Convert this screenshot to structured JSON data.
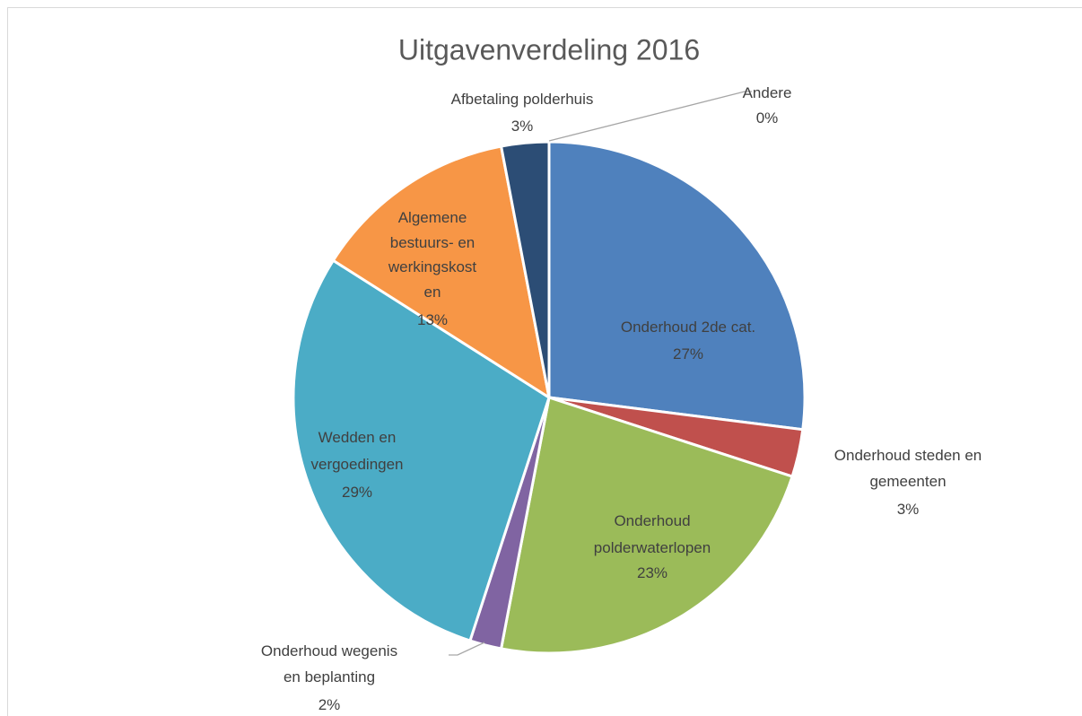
{
  "chart_data": {
    "type": "pie",
    "title": "Uitgavenverdeling 2016",
    "categories": [
      "Onderhoud 2de cat.",
      "Onderhoud steden en gemeenten",
      "Onderhoud polderwaterlopen",
      "Onderhoud wegenis en beplanting",
      "Wedden en vergoedingen",
      "Algemene bestuurs- en werkingskosten",
      "Afbetaling polderhuis",
      "Andere"
    ],
    "values": [
      27,
      3,
      23,
      2,
      29,
      13,
      3,
      0
    ],
    "value_labels": [
      "27%",
      "3%",
      "23%",
      "2%",
      "29%",
      "13%",
      "3%",
      "0%"
    ],
    "colors": [
      "#4f81bd",
      "#c0504d",
      "#9bbb59",
      "#8064a2",
      "#4bacc6",
      "#f79646",
      "#2c4d75",
      "#772c2a"
    ]
  }
}
